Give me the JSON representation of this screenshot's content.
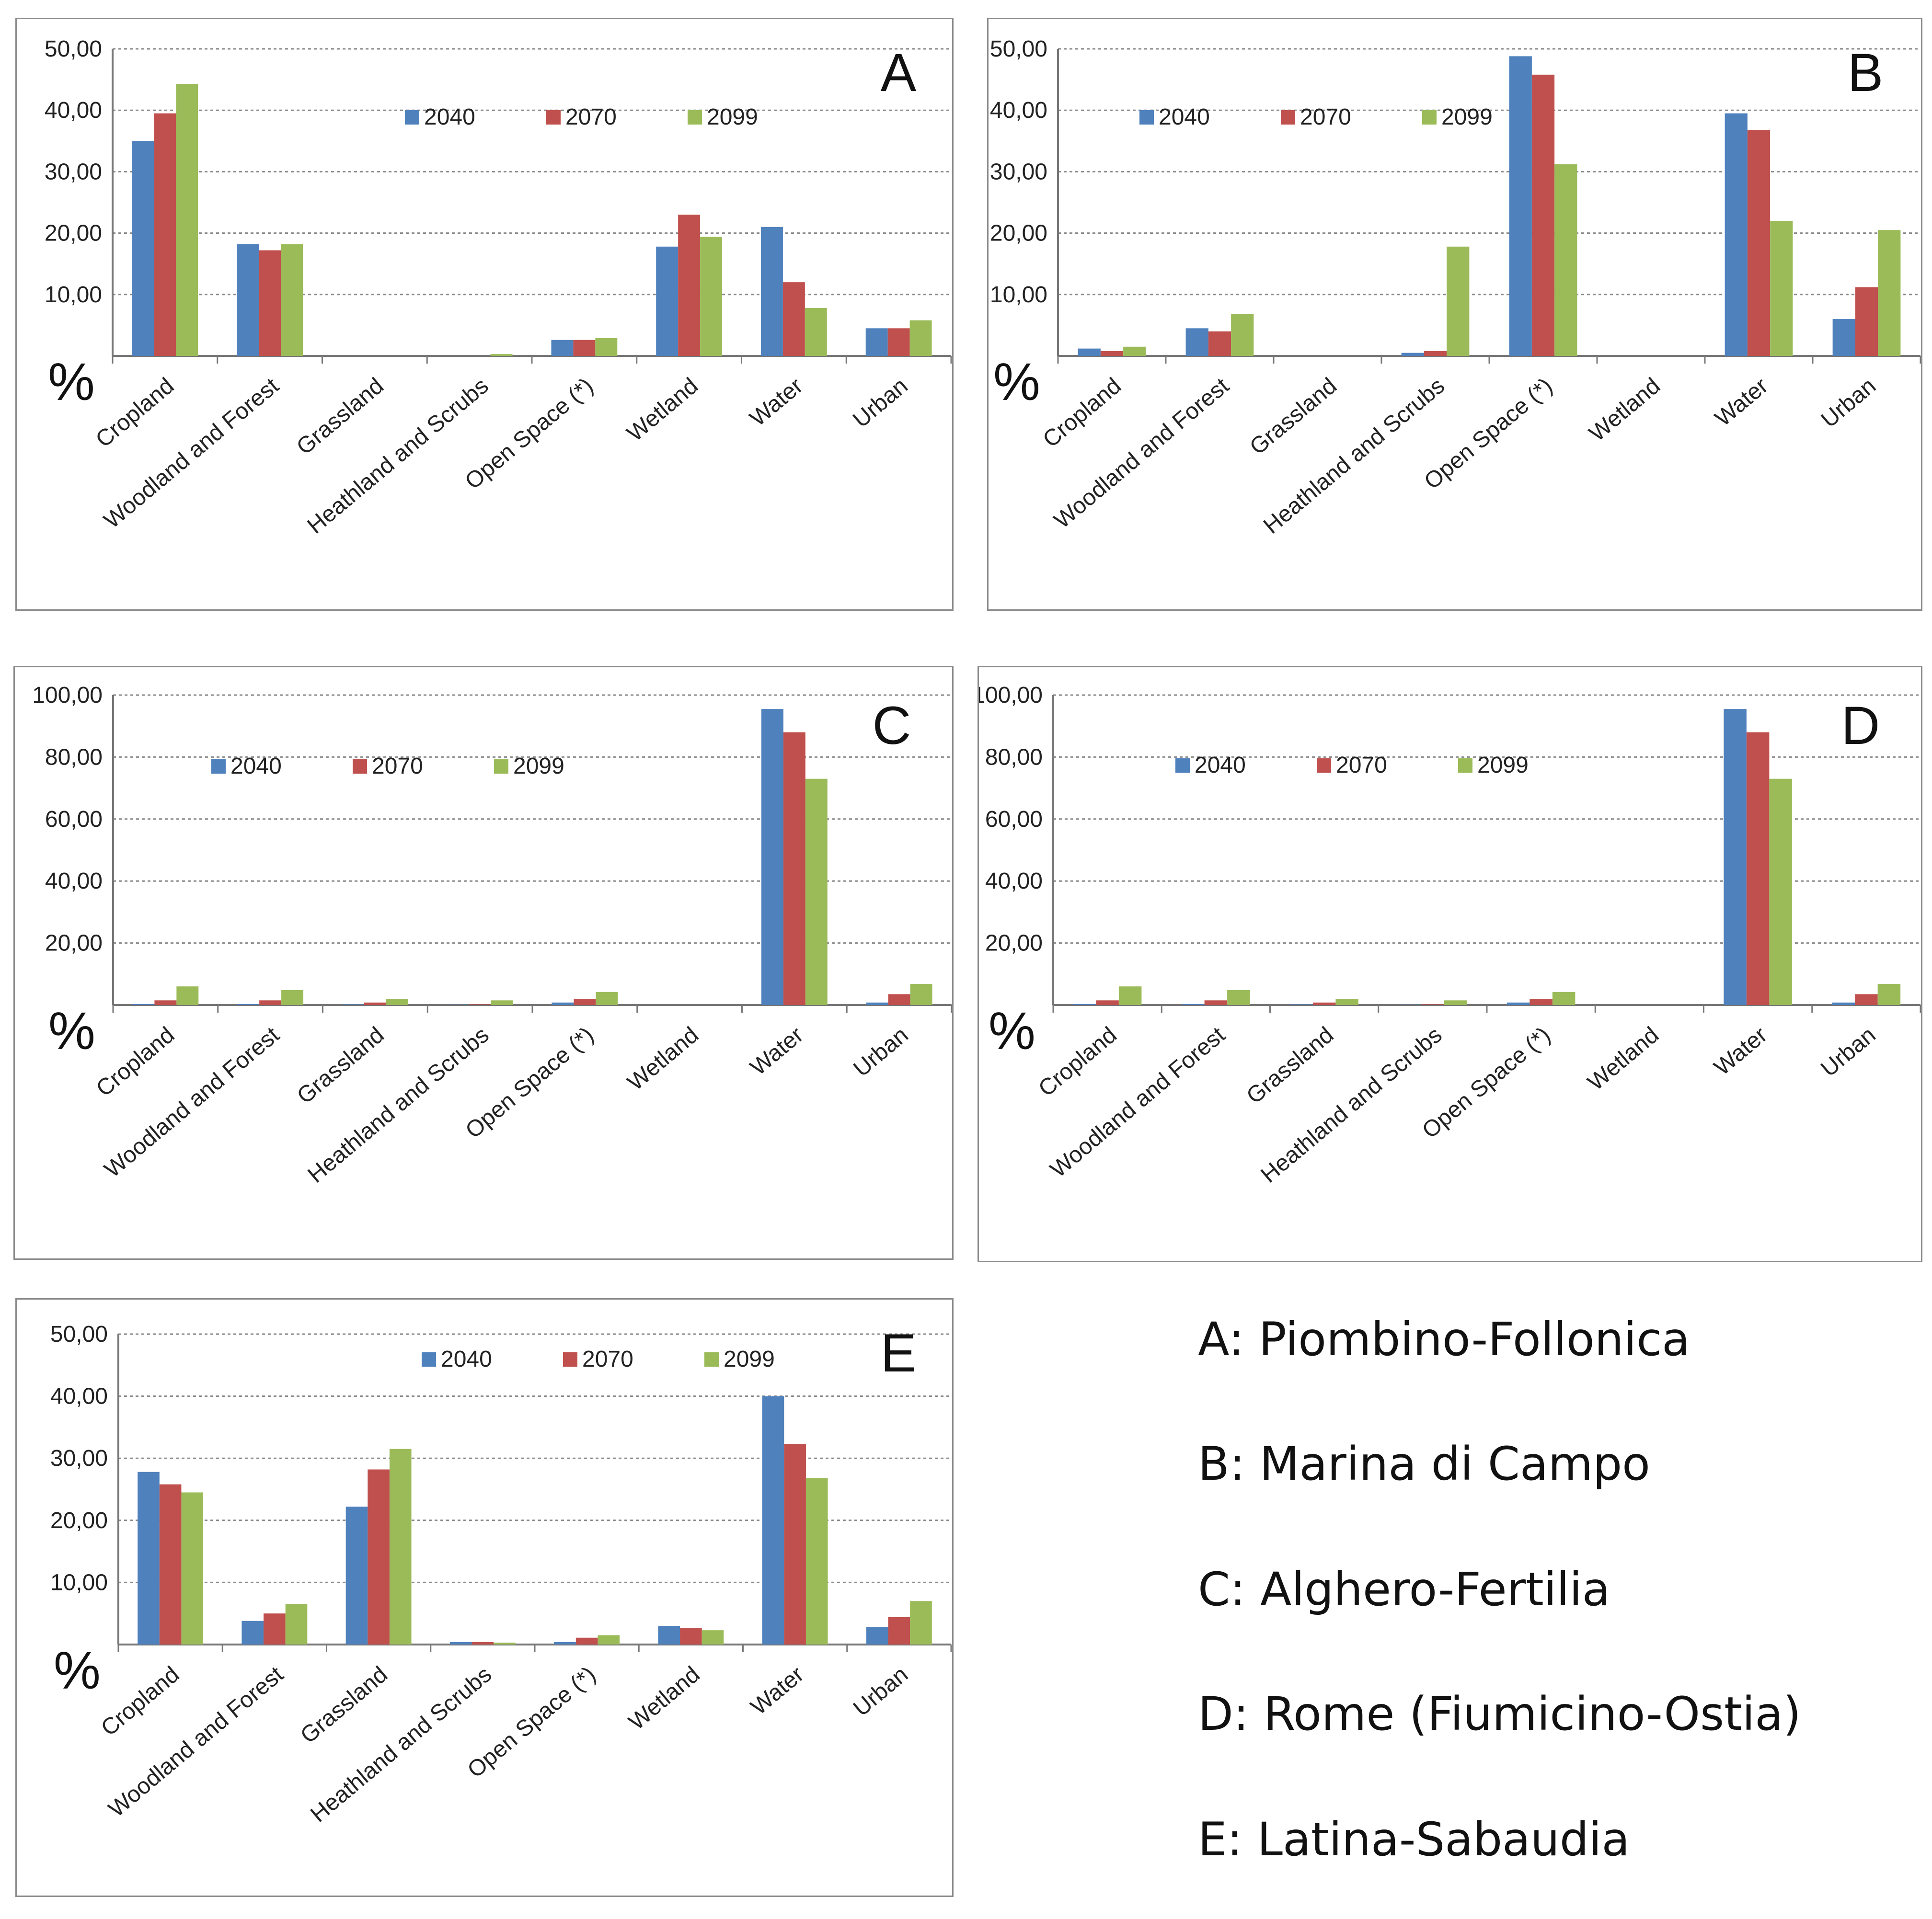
{
  "chart_data": [
    {
      "type": "bar",
      "panel_letter": "A",
      "categories": [
        "Cropland",
        "Woodland and Forest",
        "Grassland",
        "Heathland and Scrubs",
        "Open Space (*)",
        "Wetland",
        "Water",
        "Urban"
      ],
      "series": [
        {
          "name": "2040",
          "values": [
            35.0,
            18.2,
            0,
            0,
            2.6,
            17.8,
            21.0,
            4.5
          ]
        },
        {
          "name": "2070",
          "values": [
            39.5,
            17.2,
            0,
            0,
            2.6,
            23.0,
            12.0,
            4.5
          ]
        },
        {
          "name": "2099",
          "values": [
            44.3,
            18.2,
            0,
            0.3,
            2.9,
            19.4,
            7.8,
            5.8
          ]
        }
      ],
      "yticks": [
        "50,00",
        "40,00",
        "30,00",
        "20,00",
        "10,00"
      ],
      "ylim": [
        0,
        50
      ],
      "ylabel": "%"
    },
    {
      "type": "bar",
      "panel_letter": "B",
      "categories": [
        "Cropland",
        "Woodland and Forest",
        "Grassland",
        "Heathland and Scrubs",
        "Open Space (*)",
        "Wetland",
        "Water",
        "Urban"
      ],
      "series": [
        {
          "name": "2040",
          "values": [
            1.2,
            4.5,
            0,
            0.5,
            48.8,
            0,
            39.5,
            6.0
          ]
        },
        {
          "name": "2070",
          "values": [
            0.8,
            4.0,
            0,
            0.8,
            45.8,
            0,
            36.8,
            11.2
          ]
        },
        {
          "name": "2099",
          "values": [
            1.5,
            6.8,
            0,
            17.8,
            31.2,
            0,
            22.0,
            20.5
          ]
        }
      ],
      "yticks": [
        "50,00",
        "40,00",
        "30,00",
        "20,00",
        "10,00"
      ],
      "ylim": [
        0,
        50
      ],
      "ylabel": "%"
    },
    {
      "type": "bar",
      "panel_letter": "C",
      "categories": [
        "Cropland",
        "Woodland and Forest",
        "Grassland",
        "Heathland and Scrubs",
        "Open Space (*)",
        "Wetland",
        "Water",
        "Urban"
      ],
      "series": [
        {
          "name": "2040",
          "values": [
            0.3,
            0.3,
            0.2,
            0.1,
            0.8,
            0,
            95.5,
            0.8
          ]
        },
        {
          "name": "2070",
          "values": [
            1.5,
            1.5,
            0.8,
            0.2,
            2.0,
            0,
            88.0,
            3.5
          ]
        },
        {
          "name": "2099",
          "values": [
            6.0,
            4.8,
            2.0,
            1.5,
            4.2,
            0,
            73.0,
            6.8
          ]
        }
      ],
      "yticks": [
        "100,00",
        "80,00",
        "60,00",
        "40,00",
        "20,00"
      ],
      "ylim": [
        0,
        100
      ],
      "ylabel": "%"
    },
    {
      "type": "bar",
      "panel_letter": "D",
      "categories": [
        "Cropland",
        "Woodland and Forest",
        "Grassland",
        "Heathland and Scrubs",
        "Open Space (*)",
        "Wetland",
        "Water",
        "Urban"
      ],
      "series": [
        {
          "name": "2040",
          "values": [
            0.3,
            0.3,
            0.2,
            0.1,
            0.8,
            0,
            95.5,
            0.8
          ]
        },
        {
          "name": "2070",
          "values": [
            1.5,
            1.5,
            0.8,
            0.2,
            2.0,
            0,
            88.0,
            3.5
          ]
        },
        {
          "name": "2099",
          "values": [
            6.0,
            4.8,
            2.0,
            1.5,
            4.2,
            0,
            73.0,
            6.8
          ]
        }
      ],
      "yticks": [
        "100,00",
        "80,00",
        "60,00",
        "40,00",
        "20,00"
      ],
      "ylim": [
        0,
        100
      ],
      "ylabel": "%"
    },
    {
      "type": "bar",
      "panel_letter": "E",
      "categories": [
        "Cropland",
        "Woodland and Forest",
        "Grassland",
        "Heathland and Scrubs",
        "Open Space (*)",
        "Wetland",
        "Water",
        "Urban"
      ],
      "series": [
        {
          "name": "2040",
          "values": [
            27.8,
            3.8,
            22.2,
            0.4,
            0.4,
            3.0,
            40.0,
            2.8
          ]
        },
        {
          "name": "2070",
          "values": [
            25.8,
            5.0,
            28.2,
            0.4,
            1.1,
            2.7,
            32.3,
            4.4
          ]
        },
        {
          "name": "2099",
          "values": [
            24.5,
            6.5,
            31.5,
            0.3,
            1.5,
            2.3,
            26.8,
            7.0
          ]
        }
      ],
      "yticks": [
        "50,00",
        "40,00",
        "30,00",
        "20,00",
        "10,00"
      ],
      "ylim": [
        0,
        50
      ],
      "ylabel": "%"
    }
  ],
  "colors": {
    "2040": "#4f81bd",
    "2070": "#c0504d",
    "2099": "#9bbb59"
  },
  "key": [
    {
      "text": "A: Piombino-Follonica"
    },
    {
      "text": "B: Marina di Campo"
    },
    {
      "text": "C: Alghero-Fertilia"
    },
    {
      "text": "D: Rome (Fiumicino-Ostia)"
    },
    {
      "text": "E: Latina-Sabaudia"
    }
  ]
}
